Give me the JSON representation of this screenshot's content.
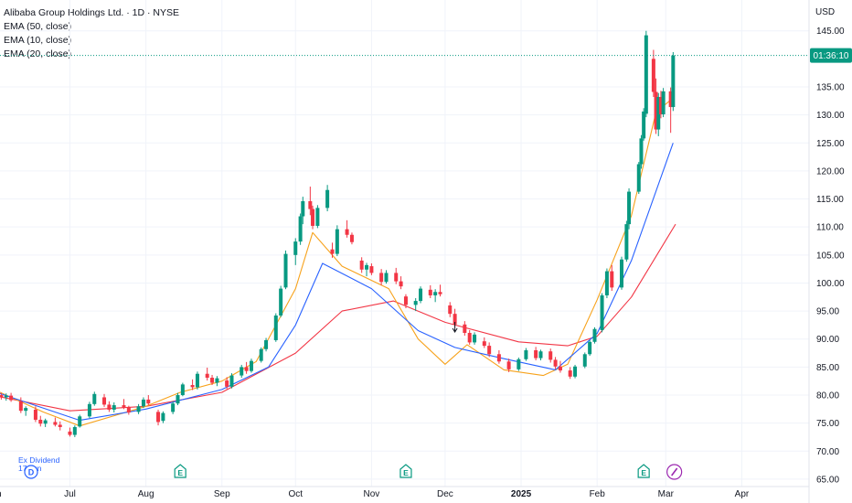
{
  "header": {
    "title": "Alibaba Group Holdings Ltd. · 1D · NYSE",
    "indicators": [
      "EMA (50, close)",
      "EMA (10, close)",
      "EMA (20, close)"
    ],
    "currency": "USD"
  },
  "price_tag": {
    "label": "01:36:10",
    "value": 140.6,
    "color": "#089981"
  },
  "colors": {
    "up": "#089981",
    "down": "#f23645",
    "ema50": "#f23645",
    "ema10": "#f7a21b",
    "ema20": "#2962ff",
    "grid": "#f0f3fa"
  },
  "markers": {
    "dividend_label": "Ex Dividend",
    "dividend_sub": "17 Jun",
    "dividend_letter": "D",
    "earnings_letter": "E",
    "earnings_months": [
      "Aug 15",
      "Nov 15",
      "Feb 20"
    ]
  },
  "chart_data": {
    "type": "candlestick",
    "x_range": [
      "2024-06-01",
      "2025-04-15"
    ],
    "x_ticks": [
      {
        "date": "2024-06-01",
        "label": "un"
      },
      {
        "date": "2024-07-01",
        "label": "Jul"
      },
      {
        "date": "2024-08-01",
        "label": "Aug"
      },
      {
        "date": "2024-09-01",
        "label": "Sep"
      },
      {
        "date": "2024-10-01",
        "label": "Oct"
      },
      {
        "date": "2024-11-01",
        "label": "Nov"
      },
      {
        "date": "2024-12-01",
        "label": "Dec"
      },
      {
        "date": "2025-01-01",
        "label": "2025",
        "bold": true
      },
      {
        "date": "2025-02-01",
        "label": "Feb"
      },
      {
        "date": "2025-03-01",
        "label": "Mar"
      },
      {
        "date": "2025-04-01",
        "label": "Apr"
      }
    ],
    "y_ticks": [
      65,
      70,
      75,
      80,
      85,
      90,
      95,
      100,
      105,
      110,
      115,
      120,
      125,
      130,
      135,
      145
    ],
    "ylim": [
      64.5,
      150.5
    ],
    "series": [
      {
        "name": "EMA (50, close)",
        "points": [
          [
            "2024-06-01",
            79.8
          ],
          [
            "2024-07-01",
            77.2
          ],
          [
            "2024-08-01",
            78.0
          ],
          [
            "2024-09-01",
            80.5
          ],
          [
            "2024-10-01",
            87.5
          ],
          [
            "2024-10-20",
            95.0
          ],
          [
            "2024-11-10",
            96.8
          ],
          [
            "2024-12-01",
            93.0
          ],
          [
            "2024-12-31",
            89.5
          ],
          [
            "2025-01-20",
            88.8
          ],
          [
            "2025-02-01",
            90.5
          ],
          [
            "2025-02-15",
            97.5
          ],
          [
            "2025-03-05",
            110.5
          ]
        ]
      },
      {
        "name": "EMA (10, close)",
        "points": [
          [
            "2024-06-01",
            80.8
          ],
          [
            "2024-06-20",
            77.0
          ],
          [
            "2024-07-05",
            74.5
          ],
          [
            "2024-08-01",
            78.0
          ],
          [
            "2024-08-15",
            80.5
          ],
          [
            "2024-09-01",
            82.5
          ],
          [
            "2024-09-15",
            86.0
          ],
          [
            "2024-10-01",
            99.0
          ],
          [
            "2024-10-08",
            109.0
          ],
          [
            "2024-10-20",
            103.0
          ],
          [
            "2024-11-08",
            99.0
          ],
          [
            "2024-11-20",
            90.0
          ],
          [
            "2024-12-01",
            85.5
          ],
          [
            "2024-12-10",
            89.0
          ],
          [
            "2024-12-25",
            84.5
          ],
          [
            "2025-01-10",
            83.5
          ],
          [
            "2025-01-20",
            85.5
          ],
          [
            "2025-02-01",
            97.0
          ],
          [
            "2025-02-15",
            112.0
          ],
          [
            "2025-02-25",
            130.5
          ],
          [
            "2025-03-04",
            133.0
          ]
        ]
      },
      {
        "name": "EMA (20, close)",
        "points": [
          [
            "2024-06-01",
            80.5
          ],
          [
            "2024-07-05",
            75.5
          ],
          [
            "2024-08-01",
            77.5
          ],
          [
            "2024-09-01",
            81.0
          ],
          [
            "2024-09-20",
            85.0
          ],
          [
            "2024-10-01",
            92.5
          ],
          [
            "2024-10-12",
            103.5
          ],
          [
            "2024-11-01",
            99.0
          ],
          [
            "2024-11-20",
            91.5
          ],
          [
            "2024-12-05",
            88.5
          ],
          [
            "2024-12-25",
            86.5
          ],
          [
            "2025-01-15",
            84.5
          ],
          [
            "2025-02-01",
            91.0
          ],
          [
            "2025-02-15",
            104.0
          ],
          [
            "2025-03-04",
            125.0
          ]
        ]
      }
    ],
    "candles": [
      [
        "2024-06-03",
        80.0,
        80.4,
        79.2,
        79.6
      ],
      [
        "2024-06-05",
        79.6,
        80.3,
        79.0,
        79.9
      ],
      [
        "2024-06-07",
        79.9,
        80.4,
        78.8,
        79.1
      ],
      [
        "2024-06-11",
        78.9,
        79.6,
        76.8,
        77.2
      ],
      [
        "2024-06-13",
        77.2,
        78.0,
        76.3,
        77.7
      ],
      [
        "2024-06-17",
        77.4,
        78.0,
        75.2,
        75.6
      ],
      [
        "2024-06-19",
        75.6,
        76.3,
        74.4,
        74.9
      ],
      [
        "2024-06-21",
        74.9,
        75.8,
        74.3,
        75.5
      ],
      [
        "2024-06-25",
        75.2,
        76.0,
        74.4,
        74.7
      ],
      [
        "2024-06-27",
        74.7,
        75.3,
        73.7,
        74.3
      ],
      [
        "2024-07-01",
        73.5,
        74.2,
        72.6,
        72.9
      ],
      [
        "2024-07-03",
        72.9,
        74.6,
        72.5,
        74.3
      ],
      [
        "2024-07-05",
        74.4,
        76.5,
        74.2,
        76.2
      ],
      [
        "2024-07-09",
        76.2,
        78.8,
        75.9,
        78.4
      ],
      [
        "2024-07-11",
        78.4,
        80.6,
        78.1,
        80.2
      ],
      [
        "2024-07-15",
        79.6,
        80.2,
        77.9,
        78.3
      ],
      [
        "2024-07-17",
        78.3,
        78.9,
        77.0,
        77.4
      ],
      [
        "2024-07-19",
        77.4,
        78.7,
        76.9,
        78.2
      ],
      [
        "2024-07-23",
        78.2,
        79.3,
        77.5,
        77.8
      ],
      [
        "2024-07-25",
        77.8,
        78.1,
        76.5,
        76.9
      ],
      [
        "2024-07-29",
        77.0,
        78.4,
        76.6,
        78.0
      ],
      [
        "2024-07-31",
        78.0,
        79.6,
        77.7,
        79.2
      ],
      [
        "2024-08-02",
        79.2,
        80.0,
        78.2,
        78.5
      ],
      [
        "2024-08-06",
        77.0,
        77.4,
        74.6,
        75.2
      ],
      [
        "2024-08-08",
        75.4,
        77.1,
        75.0,
        76.8
      ],
      [
        "2024-08-12",
        77.0,
        78.9,
        76.6,
        78.5
      ],
      [
        "2024-08-14",
        78.5,
        80.4,
        78.2,
        80.0
      ],
      [
        "2024-08-16",
        80.0,
        82.2,
        79.8,
        81.9
      ],
      [
        "2024-08-20",
        81.8,
        82.8,
        80.9,
        81.4
      ],
      [
        "2024-08-22",
        81.4,
        84.2,
        81.0,
        83.8
      ],
      [
        "2024-08-26",
        83.8,
        84.9,
        82.6,
        83.1
      ],
      [
        "2024-08-28",
        83.1,
        83.6,
        81.8,
        82.2
      ],
      [
        "2024-08-30",
        82.2,
        83.4,
        81.6,
        83.0
      ],
      [
        "2024-09-03",
        82.6,
        83.2,
        81.1,
        81.5
      ],
      [
        "2024-09-05",
        81.5,
        83.9,
        81.2,
        83.5
      ],
      [
        "2024-09-09",
        83.5,
        85.4,
        83.1,
        85.0
      ],
      [
        "2024-09-11",
        85.0,
        85.9,
        83.8,
        84.3
      ],
      [
        "2024-09-13",
        84.3,
        86.5,
        84.0,
        86.1
      ],
      [
        "2024-09-17",
        86.1,
        88.5,
        85.8,
        88.2
      ],
      [
        "2024-09-19",
        88.2,
        90.2,
        87.8,
        89.8
      ],
      [
        "2024-09-23",
        89.8,
        94.6,
        89.5,
        94.2
      ],
      [
        "2024-09-25",
        94.2,
        99.5,
        93.9,
        99.0
      ],
      [
        "2024-09-27",
        99.2,
        105.8,
        98.9,
        105.2
      ],
      [
        "2024-10-01",
        105.0,
        108.0,
        103.2,
        107.4
      ],
      [
        "2024-10-03",
        107.4,
        112.4,
        106.8,
        111.9
      ],
      [
        "2024-10-04",
        111.9,
        115.4,
        110.5,
        114.6
      ],
      [
        "2024-10-07",
        114.6,
        117.2,
        112.1,
        113.2
      ],
      [
        "2024-10-08",
        113.2,
        113.8,
        109.6,
        110.2
      ],
      [
        "2024-10-10",
        110.2,
        113.9,
        109.8,
        113.4
      ],
      [
        "2024-10-14",
        113.4,
        117.5,
        112.8,
        116.6
      ],
      [
        "2024-10-16",
        106.0,
        107.2,
        104.5,
        105.2
      ],
      [
        "2024-10-18",
        105.2,
        110.3,
        104.8,
        109.6
      ],
      [
        "2024-10-22",
        109.6,
        111.2,
        108.1,
        108.6
      ],
      [
        "2024-10-24",
        108.6,
        109.0,
        106.9,
        107.3
      ],
      [
        "2024-10-28",
        104.0,
        104.6,
        101.8,
        102.4
      ],
      [
        "2024-10-30",
        102.4,
        103.6,
        101.2,
        103.2
      ],
      [
        "2024-11-01",
        103.0,
        103.5,
        101.4,
        101.8
      ],
      [
        "2024-11-05",
        101.8,
        102.5,
        99.6,
        100.2
      ],
      [
        "2024-11-07",
        100.2,
        102.3,
        99.9,
        101.8
      ],
      [
        "2024-11-11",
        101.8,
        102.7,
        99.8,
        100.3
      ],
      [
        "2024-11-13",
        100.3,
        101.2,
        98.9,
        99.4
      ],
      [
        "2024-11-15",
        97.6,
        98.0,
        95.5,
        96.1
      ],
      [
        "2024-11-19",
        96.1,
        97.3,
        95.0,
        96.8
      ],
      [
        "2024-11-21",
        96.8,
        99.4,
        96.4,
        99.0
      ],
      [
        "2024-11-25",
        98.8,
        99.6,
        97.3,
        97.8
      ],
      [
        "2024-11-27",
        97.8,
        98.9,
        96.6,
        98.4
      ],
      [
        "2024-11-29",
        98.4,
        99.7,
        97.6,
        98.0
      ],
      [
        "2024-12-03",
        96.0,
        96.6,
        93.9,
        94.5
      ],
      [
        "2024-12-05",
        94.5,
        95.4,
        92.1,
        92.6
      ],
      [
        "2024-12-09",
        92.6,
        93.2,
        90.6,
        91.1
      ],
      [
        "2024-12-11",
        91.1,
        91.6,
        89.0,
        89.4
      ],
      [
        "2024-12-13",
        89.4,
        91.2,
        89.0,
        90.8
      ],
      [
        "2024-12-17",
        89.6,
        90.3,
        88.4,
        88.8
      ],
      [
        "2024-12-19",
        88.8,
        89.4,
        86.8,
        87.3
      ],
      [
        "2024-12-23",
        87.3,
        88.0,
        85.6,
        86.0
      ],
      [
        "2024-12-27",
        86.0,
        86.5,
        84.1,
        84.6
      ],
      [
        "2024-12-31",
        84.6,
        86.7,
        84.3,
        86.4
      ],
      [
        "2025-01-03",
        86.4,
        88.4,
        86.1,
        88.0
      ],
      [
        "2025-01-07",
        88.0,
        88.6,
        86.2,
        86.6
      ],
      [
        "2025-01-09",
        86.6,
        88.1,
        86.2,
        87.8
      ],
      [
        "2025-01-13",
        87.8,
        88.3,
        85.8,
        86.3
      ],
      [
        "2025-01-15",
        86.3,
        86.8,
        84.6,
        85.1
      ],
      [
        "2025-01-17",
        85.1,
        86.1,
        84.0,
        84.4
      ],
      [
        "2025-01-21",
        84.4,
        85.0,
        82.9,
        83.3
      ],
      [
        "2025-01-23",
        83.3,
        85.4,
        83.0,
        85.1
      ],
      [
        "2025-01-27",
        85.1,
        87.6,
        84.8,
        87.3
      ],
      [
        "2025-01-29",
        87.3,
        89.8,
        87.0,
        89.5
      ],
      [
        "2025-01-31",
        89.5,
        92.1,
        89.2,
        91.8
      ],
      [
        "2025-02-03",
        91.6,
        98.2,
        91.2,
        97.8
      ],
      [
        "2025-02-05",
        97.8,
        102.6,
        97.3,
        102.1
      ],
      [
        "2025-02-07",
        102.1,
        103.2,
        98.6,
        99.2
      ],
      [
        "2025-02-11",
        99.2,
        104.7,
        98.8,
        104.2
      ],
      [
        "2025-02-13",
        104.2,
        111.1,
        103.8,
        110.5
      ],
      [
        "2025-02-14",
        110.5,
        116.9,
        109.6,
        116.3
      ],
      [
        "2025-02-18",
        116.3,
        121.6,
        115.9,
        121.2
      ],
      [
        "2025-02-19",
        121.2,
        126.4,
        120.4,
        125.8
      ],
      [
        "2025-02-20",
        125.8,
        131.2,
        125.4,
        130.6
      ],
      [
        "2025-02-21",
        130.2,
        145.0,
        129.6,
        144.2
      ],
      [
        "2025-02-24",
        140.0,
        141.6,
        133.2,
        134.1
      ],
      [
        "2025-02-25",
        134.1,
        136.5,
        126.6,
        127.4
      ],
      [
        "2025-02-26",
        127.4,
        133.9,
        126.2,
        133.2
      ],
      [
        "2025-02-27",
        133.2,
        134.3,
        129.4,
        130.1
      ],
      [
        "2025-02-28",
        130.1,
        134.8,
        129.6,
        134.2
      ],
      [
        "2025-03-03",
        134.2,
        134.9,
        126.8,
        131.4
      ],
      [
        "2025-03-04",
        131.4,
        141.2,
        130.7,
        140.6
      ]
    ]
  }
}
